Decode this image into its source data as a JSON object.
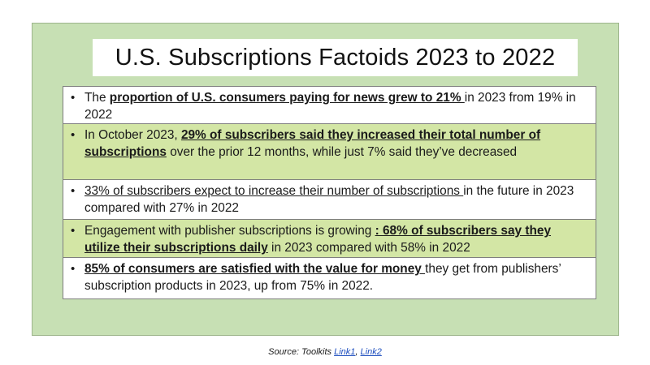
{
  "title": "U.S. Subscriptions Factoids 2023 to 2022",
  "bullet_char": "•",
  "facts": [
    {
      "pre": "The ",
      "link": "proportion of U.S. consumers paying for news grew to 21% ",
      "post": "in 2023 from 19% in 2022"
    },
    {
      "pre": "In October 2023, ",
      "link": "29% of subscribers said they increased their total number of subscriptions",
      "post": " over the prior 12 months, while just 7% said they’ve decreased"
    },
    {
      "pre": "",
      "link": "33% of subscribers expect to increase their number of subscriptions ",
      "post": "in the future in 2023 compared with 27% in 2022"
    },
    {
      "pre": "Engagement with publisher subscriptions is growing ",
      "link": ": 68% of subscribers say they utilize their subscriptions daily",
      "post": " in 2023 compared with 58% in 2022"
    },
    {
      "pre": "",
      "link": "85% of consumers are satisfied with the value for money ",
      "post": "they get from publishers’ subscription products in 2023, up from 75% in 2022."
    }
  ],
  "source": {
    "prefix": "Source:  Toolkits ",
    "link1": "Link1",
    "separator": ", ",
    "link2": "Link2"
  }
}
